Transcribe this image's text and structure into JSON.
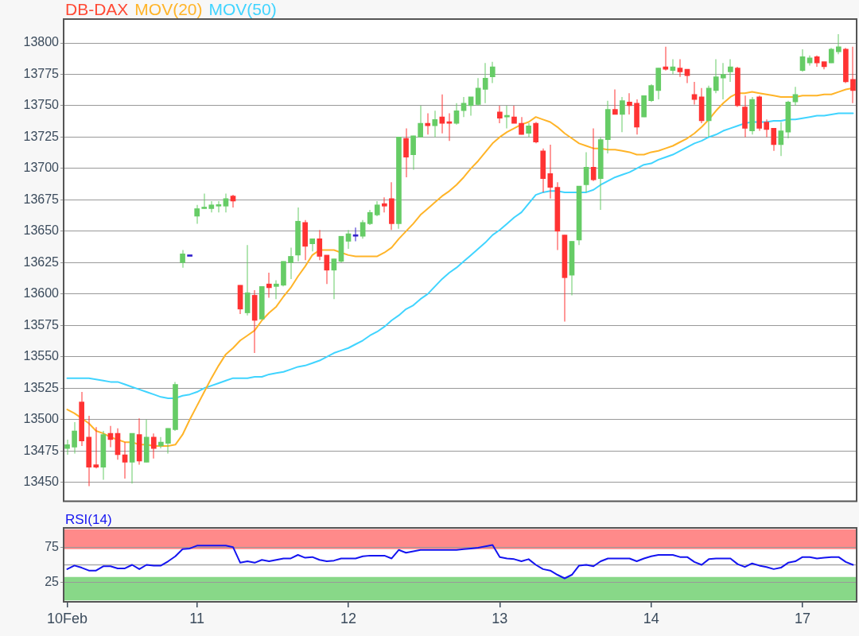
{
  "chart_data": [
    {
      "type": "candlestick",
      "categories": [
        null,
        null,
        null,
        null,
        null,
        null,
        null,
        null,
        null,
        null,
        null,
        null,
        null,
        null,
        null,
        null,
        null,
        null,
        null,
        null,
        null,
        null,
        null,
        null,
        null,
        null,
        null,
        null,
        null,
        null,
        null,
        null,
        null,
        null,
        null,
        null,
        null,
        null,
        null,
        null,
        null,
        null,
        null,
        null,
        null,
        null,
        null,
        null,
        null,
        null,
        null,
        null,
        null,
        null,
        null,
        null,
        null,
        null,
        null,
        null,
        null,
        null,
        null,
        null,
        null,
        null,
        null,
        null,
        null,
        null,
        null,
        null,
        null,
        null,
        null,
        null,
        null,
        null,
        null,
        null,
        null,
        null,
        null,
        null,
        null,
        null,
        null,
        null,
        null,
        null,
        null,
        null,
        null,
        null,
        null,
        null,
        null,
        null,
        null,
        null,
        null,
        null,
        null,
        null,
        null,
        null,
        null,
        null,
        null,
        null
      ],
      "series": [
        {
          "name": "DB-DAX",
          "color": "#ff4a35",
          "colors": [
            "#66cc66",
            "#66cc66",
            "#ff3333",
            "#ff3333",
            "#ff3333",
            "#66cc66",
            "#ff3333",
            "#ff3333",
            "#ff3333",
            "#66cc66",
            "#ff3333",
            "#66cc66",
            "#ff3333",
            "#66cc66",
            "#66cc66",
            "#66cc66",
            "#66cc66",
            "#3322cc",
            "#66cc66",
            "#66cc66",
            "#66cc66",
            "#66cc66",
            "#66cc66",
            "#ff3333",
            "#ff3333",
            "#66cc66",
            "#ff3333",
            "#66cc66",
            "#ff3333",
            "#66cc66",
            "#66cc66",
            "#66cc66",
            "#66cc66",
            "#ff3333",
            "#66cc66",
            "#ff3333",
            "#ff3333",
            "#66cc66",
            "#66cc66",
            "#66cc66",
            "#3322cc",
            "#66cc66",
            "#66cc66",
            "#66cc66",
            "#ff3333",
            "#ff3333",
            "#66cc66",
            "#ff3333",
            "#66cc66",
            "#66cc66",
            "#ff3333",
            "#66cc66",
            "#ff3333",
            "#ff3333",
            "#66cc66",
            "#66cc66",
            "#66cc66",
            "#66cc66",
            "#66cc66",
            "#66cc66",
            "#ff3333",
            "#66cc66",
            "#ff3333",
            "#ff3333",
            "#66cc66",
            "#ff3333",
            "#ff3333",
            "#ff3333",
            "#ff3333",
            "#ff3333",
            "#66cc66",
            "#66cc66",
            "#66cc66",
            "#ff3333",
            "#66cc66",
            "#66cc66",
            "#ff3333",
            "#66cc66",
            "#ff3333",
            "#ff3333",
            "#66cc66",
            "#66cc66",
            "#66cc66",
            "#ff3333",
            "#66cc66",
            "#ff3333",
            "#ff3333",
            "#ff3333",
            "#ff3333",
            "#66cc66",
            "#66cc66",
            "#66cc66",
            "#66cc66",
            "#ff3333",
            "#ff3333",
            "#66cc66",
            "#ff3333",
            "#ff3333",
            "#ff3333",
            "#66cc66",
            "#66cc66",
            "#66cc66",
            "#66cc66",
            "#66cc66",
            "#ff3333",
            "#ff3333",
            "#66cc66",
            "#66cc66",
            "#ff3333",
            "#ff3333"
          ],
          "ohlc": [
            [
              13477,
              13484,
              13472,
              13480
            ],
            [
              13478,
              13498,
              13473,
              13491
            ],
            [
              13514,
              13522,
              13479,
              13483
            ],
            [
              13486,
              13503,
              13447,
              13462
            ],
            [
              13464,
              13494,
              13461,
              13462
            ],
            [
              13462,
              13491,
              13452,
              13488
            ],
            [
              13489,
              13495,
              13478,
              13484
            ],
            [
              13489,
              13493,
              13468,
              13472
            ],
            [
              13472,
              13482,
              13453,
              13466
            ],
            [
              13466,
              13489,
              13449,
              13489
            ],
            [
              13488,
              13501,
              13464,
              13467
            ],
            [
              13466,
              13500,
              13466,
              13486
            ],
            [
              13486,
              13489,
              13469,
              13477
            ],
            [
              13479,
              13486,
              13477,
              13482
            ],
            [
              13481,
              13493,
              13473,
              13493
            ],
            [
              13492,
              13530,
              13491,
              13528
            ],
            [
              13625,
              13635,
              13621,
              13632
            ],
            [
              13630,
              13630,
              13630,
              13630
            ],
            [
              13662,
              13671,
              13656,
              13668
            ],
            [
              13668,
              13680,
              13668,
              13669
            ],
            [
              13668,
              13674,
              13665,
              13671
            ],
            [
              13670,
              13674,
              13665,
              13671
            ],
            [
              13670,
              13680,
              13665,
              13676
            ],
            [
              13678,
              13679,
              13669,
              13674
            ],
            [
              13607,
              13607,
              13584,
              13588
            ],
            [
              13585,
              13639,
              13583,
              13601
            ],
            [
              13599,
              13603,
              13553,
              13579
            ],
            [
              13580,
              13606,
              13580,
              13606
            ],
            [
              13608,
              13617,
              13597,
              13605
            ],
            [
              13606,
              13611,
              13596,
              13608
            ],
            [
              13607,
              13626,
              13606,
              13626
            ],
            [
              13625,
              13637,
              13612,
              13630
            ],
            [
              13631,
              13669,
              13626,
              13658
            ],
            [
              13657,
              13659,
              13627,
              13638
            ],
            [
              13640,
              13644,
              13634,
              13644
            ],
            [
              13644,
              13651,
              13627,
              13630
            ],
            [
              13631,
              13631,
              13608,
              13619
            ],
            [
              13619,
              13628,
              13596,
              13628
            ],
            [
              13626,
              13646,
              13625,
              13646
            ],
            [
              13642,
              13651,
              13636,
              13648
            ],
            [
              13646,
              13653,
              13642,
              13646
            ],
            [
              13646,
              13659,
              13644,
              13657
            ],
            [
              13656,
              13667,
              13655,
              13665
            ],
            [
              13663,
              13674,
              13662,
              13671
            ],
            [
              13672,
              13677,
              13665,
              13670
            ],
            [
              13676,
              13689,
              13651,
              13656
            ],
            [
              13656,
              13725,
              13652,
              13725
            ],
            [
              13724,
              13732,
              13693,
              13709
            ],
            [
              13711,
              13726,
              13699,
              13726
            ],
            [
              13725,
              13750,
              13725,
              13736
            ],
            [
              13736,
              13744,
              13727,
              13734
            ],
            [
              13734,
              13746,
              13725,
              13739
            ],
            [
              13741,
              13759,
              13728,
              13736
            ],
            [
              13737,
              13744,
              13722,
              13736
            ],
            [
              13736,
              13752,
              13735,
              13746
            ],
            [
              13746,
              13757,
              13741,
              13752
            ],
            [
              13750,
              13757,
              13742,
              13757
            ],
            [
              13751,
              13772,
              13750,
              13764
            ],
            [
              13763,
              13784,
              13752,
              13772
            ],
            [
              13773,
              13785,
              13768,
              13781
            ],
            [
              13745,
              13750,
              13736,
              13740
            ],
            [
              13741,
              13750,
              13732,
              13742
            ],
            [
              13741,
              13750,
              13736,
              13736
            ],
            [
              13736,
              13741,
              13727,
              13727
            ],
            [
              13728,
              13736,
              13725,
              13734
            ],
            [
              13736,
              13737,
              13720,
              13721
            ],
            [
              13714,
              13716,
              13681,
              13692
            ],
            [
              13696,
              13719,
              13676,
              13685
            ],
            [
              13685,
              13689,
              13635,
              13650
            ],
            [
              13647,
              13647,
              13578,
              13613
            ],
            [
              13615,
              13642,
              13599,
              13642
            ],
            [
              13643,
              13686,
              13639,
              13686
            ],
            [
              13687,
              13713,
              13681,
              13701
            ],
            [
              13701,
              13732,
              13690,
              13691
            ],
            [
              13692,
              13725,
              13667,
              13723
            ],
            [
              13723,
              13754,
              13712,
              13747
            ],
            [
              13747,
              13763,
              13743,
              13743
            ],
            [
              13743,
              13757,
              13729,
              13754
            ],
            [
              13753,
              13760,
              13743,
              13750
            ],
            [
              13752,
              13755,
              13727,
              13733
            ],
            [
              13741,
              13758,
              13741,
              13758
            ],
            [
              13754,
              13767,
              13753,
              13766
            ],
            [
              13762,
              13780,
              13755,
              13780
            ],
            [
              13781,
              13797,
              13778,
              13779
            ],
            [
              13778,
              13787,
              13775,
              13781
            ],
            [
              13780,
              13787,
              13773,
              13777
            ],
            [
              13779,
              13779,
              13768,
              13774
            ],
            [
              13759,
              13769,
              13751,
              13755
            ],
            [
              13757,
              13764,
              13736,
              13738
            ],
            [
              13738,
              13766,
              13725,
              13764
            ],
            [
              13762,
              13787,
              13760,
              13773
            ],
            [
              13772,
              13784,
              13755,
              13775
            ],
            [
              13777,
              13787,
              13769,
              13781
            ],
            [
              13780,
              13781,
              13749,
              13750
            ],
            [
              13749,
              13758,
              13725,
              13732
            ],
            [
              13730,
              13757,
              13727,
              13755
            ],
            [
              13757,
              13758,
              13730,
              13732
            ],
            [
              13737,
              13739,
              13725,
              13731
            ],
            [
              13732,
              13732,
              13714,
              13719
            ],
            [
              13719,
              13737,
              13710,
              13730
            ],
            [
              13729,
              13754,
              13724,
              13753
            ],
            [
              13753,
              13765,
              13750,
              13759
            ],
            [
              13778,
              13795,
              13777,
              13789
            ],
            [
              13784,
              13790,
              13782,
              13788
            ],
            [
              13789,
              13790,
              13781,
              13784
            ],
            [
              13785,
              13785,
              13779,
              13781
            ],
            [
              13784,
              13796,
              13784,
              13795
            ],
            [
              13793,
              13807,
              13791,
              13797
            ],
            [
              13795,
              13796,
              13768,
              13769
            ],
            [
              13771,
              13797,
              13752,
              13762
            ]
          ]
        },
        {
          "name": "MOV(20)",
          "type": "line",
          "color": "#ffb428",
          "values": [
            13508,
            13505,
            13501,
            13497,
            13491,
            13489,
            13486,
            13484,
            13482,
            13482,
            13480,
            13480,
            13479,
            13479,
            13479,
            13480,
            13488,
            13500,
            13511,
            13522,
            13533,
            13543,
            13552,
            13557,
            13563,
            13567,
            13571,
            13579,
            13585,
            13590,
            13598,
            13605,
            13614,
            13622,
            13631,
            13635,
            13635,
            13635,
            13633,
            13631,
            13630,
            13630,
            13630,
            13630,
            13633,
            13637,
            13644,
            13650,
            13656,
            13663,
            13668,
            13673,
            13678,
            13682,
            13687,
            13693,
            13700,
            13706,
            13713,
            13720,
            13725,
            13729,
            13732,
            13735,
            13737,
            13741,
            13739,
            13737,
            13733,
            13728,
            13724,
            13720,
            13718,
            13716,
            13716,
            13715,
            13715,
            13714,
            13713,
            13711,
            13711,
            13713,
            13714,
            13716,
            13718,
            13721,
            13724,
            13728,
            13733,
            13739,
            13746,
            13752,
            13757,
            13760,
            13760,
            13761,
            13760,
            13759,
            13758,
            13757,
            13757,
            13757,
            13758,
            13758,
            13758,
            13759,
            13759,
            13761,
            13763,
            13764
          ]
        },
        {
          "name": "MOV(50)",
          "type": "line",
          "color": "#40d4ff",
          "values": [
            13533,
            13533,
            13533,
            13533,
            13532,
            13531,
            13530,
            13530,
            13528,
            13526,
            13524,
            13522,
            13520,
            13518,
            13517,
            13517,
            13519,
            13520,
            13522,
            13525,
            13527,
            13529,
            13531,
            13533,
            13533,
            13533,
            13534,
            13534,
            13536,
            13537,
            13538,
            13540,
            13542,
            13543,
            13545,
            13547,
            13550,
            13553,
            13555,
            13557,
            13560,
            13563,
            13567,
            13570,
            13574,
            13579,
            13583,
            13588,
            13591,
            13596,
            13600,
            13606,
            13612,
            13617,
            13621,
            13626,
            13631,
            13636,
            13641,
            13647,
            13651,
            13656,
            13661,
            13665,
            13672,
            13679,
            13681,
            13682,
            13682,
            13681,
            13681,
            13681,
            13681,
            13683,
            13687,
            13690,
            13693,
            13695,
            13697,
            13700,
            13703,
            13704,
            13707,
            13709,
            13711,
            13714,
            13717,
            13720,
            13722,
            13725,
            13727,
            13730,
            13732,
            13734,
            13736,
            13737,
            13737,
            13737,
            13738,
            13738,
            13739,
            13739,
            13740,
            13741,
            13742,
            13742,
            13743,
            13744,
            13744,
            13744
          ]
        }
      ],
      "ylim": [
        13435,
        13819
      ],
      "yticks": [
        13450,
        13475,
        13500,
        13525,
        13550,
        13575,
        13600,
        13625,
        13650,
        13675,
        13700,
        13725,
        13750,
        13775,
        13800
      ],
      "grid": "y",
      "legend": "top left"
    },
    {
      "type": "line",
      "categories": [
        "10Feb",
        null,
        null,
        null,
        null,
        null,
        null,
        null,
        null,
        null,
        null,
        null,
        null,
        null,
        null,
        null,
        null,
        null,
        "11",
        null,
        null,
        null,
        null,
        null,
        null,
        null,
        null,
        null,
        null,
        null,
        null,
        null,
        null,
        null,
        null,
        null,
        null,
        null,
        null,
        "12",
        null,
        null,
        null,
        null,
        null,
        null,
        null,
        null,
        null,
        null,
        null,
        null,
        null,
        null,
        null,
        null,
        null,
        null,
        null,
        null,
        "13",
        null,
        null,
        null,
        null,
        null,
        null,
        null,
        null,
        null,
        null,
        null,
        null,
        null,
        null,
        null,
        null,
        null,
        null,
        null,
        null,
        "14",
        null,
        null,
        null,
        null,
        null,
        null,
        null,
        null,
        null,
        null,
        null,
        null,
        null,
        null,
        null,
        null,
        null,
        null,
        null,
        null,
        "17",
        null,
        null,
        null,
        null,
        null,
        null,
        null
      ],
      "series": [
        {
          "name": "RSI(14)",
          "color": "#1414f0",
          "values": [
            44,
            49,
            46,
            42,
            42,
            48,
            48,
            45,
            45,
            50,
            44,
            50,
            49,
            49,
            55,
            62,
            72,
            73,
            77,
            77,
            77,
            77,
            77,
            75,
            53,
            55,
            53,
            57,
            55,
            57,
            59,
            59,
            64,
            60,
            61,
            57,
            55,
            56,
            59,
            59,
            59,
            62,
            63,
            63,
            63,
            59,
            71,
            67,
            69,
            71,
            71,
            71,
            71,
            71,
            71,
            72,
            73,
            74,
            76,
            78,
            61,
            59,
            58,
            55,
            58,
            50,
            44,
            42,
            36,
            31,
            36,
            49,
            50,
            48,
            55,
            59,
            59,
            59,
            59,
            55,
            59,
            62,
            64,
            64,
            64,
            61,
            61,
            54,
            50,
            58,
            59,
            59,
            59,
            51,
            47,
            52,
            49,
            47,
            44,
            46,
            53,
            55,
            61,
            61,
            59,
            60,
            61,
            61,
            54,
            50
          ]
        }
      ],
      "ylim": [
        -2,
        102
      ],
      "yticks": [
        25,
        75
      ],
      "grid": "y",
      "legend": "top left",
      "bands": [
        {
          "axis": "y",
          "from": 72,
          "to": 100,
          "color": "#ff8a8a"
        },
        {
          "axis": "y",
          "from": 0,
          "to": 33,
          "color": "#88d888"
        }
      ],
      "ref_lines": [
        {
          "axis": "y",
          "value": 50,
          "color": "#aaaaaa"
        }
      ]
    }
  ]
}
